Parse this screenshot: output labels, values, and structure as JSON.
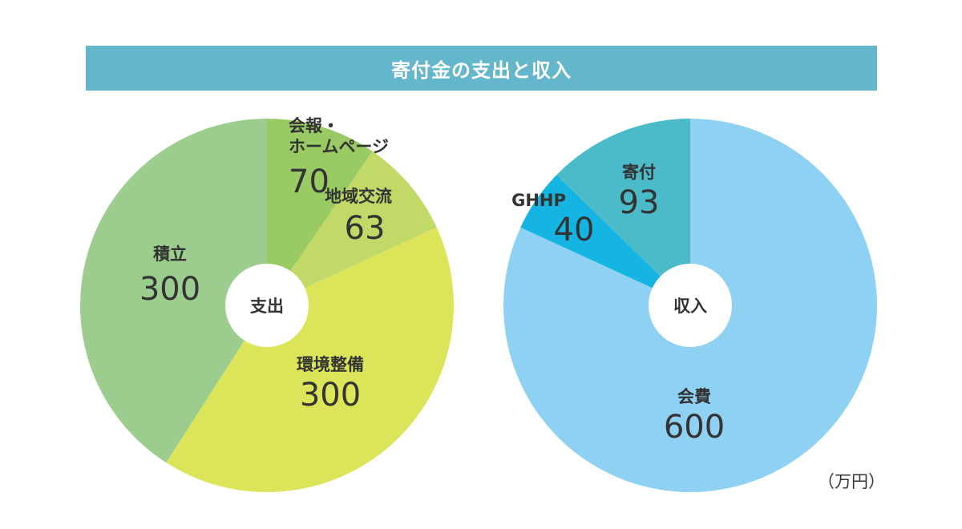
{
  "title": "寄付金の支出と収入",
  "unit_label": "（万円）",
  "chart_data": [
    {
      "type": "pie",
      "center_label": "支出",
      "slices": [
        {
          "label_lines": [
            "会報・",
            "ホームページ"
          ],
          "value": 70,
          "color": "#9aca63"
        },
        {
          "label_lines": [
            "地域交流"
          ],
          "value": 63,
          "color": "#c1d967"
        },
        {
          "label_lines": [
            "環境整備"
          ],
          "value": 300,
          "color": "#dce45a"
        },
        {
          "label_lines": [
            "積立"
          ],
          "value": 300,
          "color": "#9ccd8f"
        }
      ]
    },
    {
      "type": "pie",
      "center_label": "収入",
      "slices": [
        {
          "label_lines": [
            "会費"
          ],
          "value": 600,
          "color": "#8ed1f3"
        },
        {
          "label_lines": [
            "GHHP"
          ],
          "value": 40,
          "color": "#14b5e2"
        },
        {
          "label_lines": [
            "寄付"
          ],
          "value": 93,
          "color": "#4bbac9"
        }
      ]
    }
  ]
}
